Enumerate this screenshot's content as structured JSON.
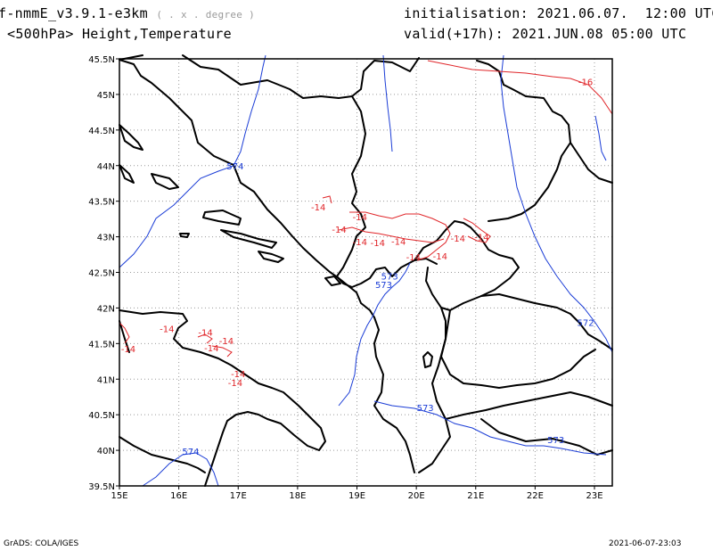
{
  "header": {
    "model": "f-nmmE_v3.9.1-e3km",
    "model_suffix": "( . x . degree )",
    "field": "<500hPa> Height,Temperature",
    "init_label": "initialisation:",
    "init_value": "2021.06.07.  12:00 UTC",
    "valid_label": "valid(+17h):",
    "valid_value": "2021.JUN.08 05:00 UTC"
  },
  "footer": {
    "left": "GrADS: COLA/IGES",
    "right": "2021-06-07-23:03"
  },
  "axes": {
    "lon_labels": [
      "15E",
      "16E",
      "17E",
      "18E",
      "19E",
      "20E",
      "21E",
      "22E",
      "23E"
    ],
    "lat_labels": [
      "45.5N",
      "45N",
      "44.5N",
      "44N",
      "43.5N",
      "43N",
      "42.5N",
      "42N",
      "41.5N",
      "41N",
      "40.5N",
      "40N",
      "39.5N"
    ],
    "lon_range": [
      15,
      23.3
    ],
    "lat_range": [
      39.5,
      45.5
    ],
    "grid": true
  },
  "colors": {
    "coast": "#000000",
    "height_contour": "#1a3cd6",
    "temp_contour": "#e0262a",
    "grid": "#9a9a9a"
  },
  "contours": {
    "height_labels": [
      {
        "text": "574",
        "lon": 16.95,
        "lat": 44.0
      },
      {
        "text": "573",
        "lon": 19.55,
        "lat": 42.45
      },
      {
        "text": "573",
        "lon": 19.45,
        "lat": 42.33
      },
      {
        "text": "572",
        "lon": 22.85,
        "lat": 41.8
      },
      {
        "text": "573",
        "lon": 20.15,
        "lat": 40.6
      },
      {
        "text": "573",
        "lon": 22.35,
        "lat": 40.15
      },
      {
        "text": "574",
        "lon": 16.2,
        "lat": 39.99
      }
    ],
    "temp_labels": [
      {
        "text": "-16",
        "lon": 22.85,
        "lat": 45.18
      },
      {
        "text": "-14",
        "lon": 18.35,
        "lat": 43.42
      },
      {
        "text": "-14",
        "lon": 19.05,
        "lat": 43.28
      },
      {
        "text": "-14",
        "lon": 18.7,
        "lat": 43.11
      },
      {
        "text": "-14",
        "lon": 19.05,
        "lat": 42.93
      },
      {
        "text": "-14",
        "lon": 19.35,
        "lat": 42.92
      },
      {
        "text": "-14",
        "lon": 19.7,
        "lat": 42.94
      },
      {
        "text": "-14",
        "lon": 19.95,
        "lat": 42.72
      },
      {
        "text": "-14",
        "lon": 20.4,
        "lat": 42.73
      },
      {
        "text": "-14",
        "lon": 20.7,
        "lat": 42.98
      },
      {
        "text": "-14",
        "lon": 21.1,
        "lat": 43.0
      },
      {
        "text": "-14",
        "lon": 15.8,
        "lat": 41.71
      },
      {
        "text": "-14",
        "lon": 16.45,
        "lat": 41.66
      },
      {
        "text": "-14",
        "lon": 16.8,
        "lat": 41.54
      },
      {
        "text": "-14",
        "lon": 16.55,
        "lat": 41.44
      },
      {
        "text": "-14",
        "lon": 17.0,
        "lat": 41.08
      },
      {
        "text": "-14",
        "lon": 16.95,
        "lat": 40.95
      },
      {
        "text": "-14",
        "lon": 15.15,
        "lat": 41.43
      }
    ]
  }
}
